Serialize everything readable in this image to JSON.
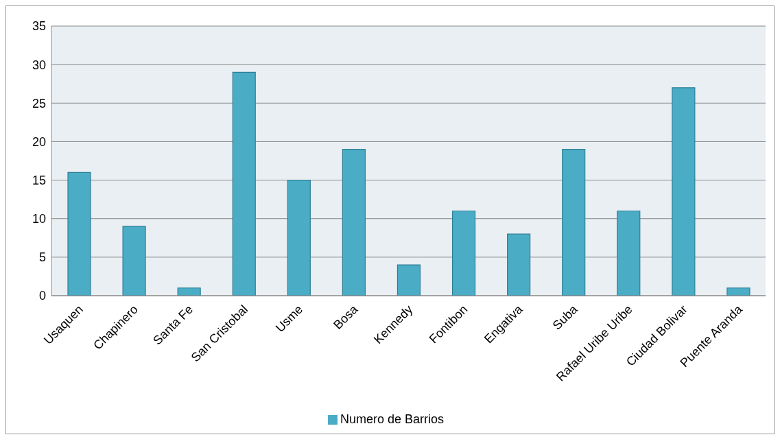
{
  "chart_data": {
    "type": "bar",
    "categories": [
      "Usaquen",
      "Chapinero",
      "Santa Fe",
      "San Cristobal",
      "Usme",
      "Bosa",
      "Kennedy",
      "Fontibon",
      "Engativa",
      "Suba",
      "Rafael Uribe Uribe",
      "Ciudad Bolivar",
      "Puente Aranda"
    ],
    "series": [
      {
        "name": "Numero de Barrios",
        "color": "#4bacc6",
        "values": [
          16,
          9,
          1,
          29,
          15,
          19,
          4,
          11,
          8,
          19,
          11,
          27,
          1
        ]
      }
    ],
    "ylim": [
      0,
      35
    ],
    "yticks": [
      0,
      5,
      10,
      15,
      20,
      25,
      30,
      35
    ],
    "grid": "y",
    "legend": "bottom"
  }
}
